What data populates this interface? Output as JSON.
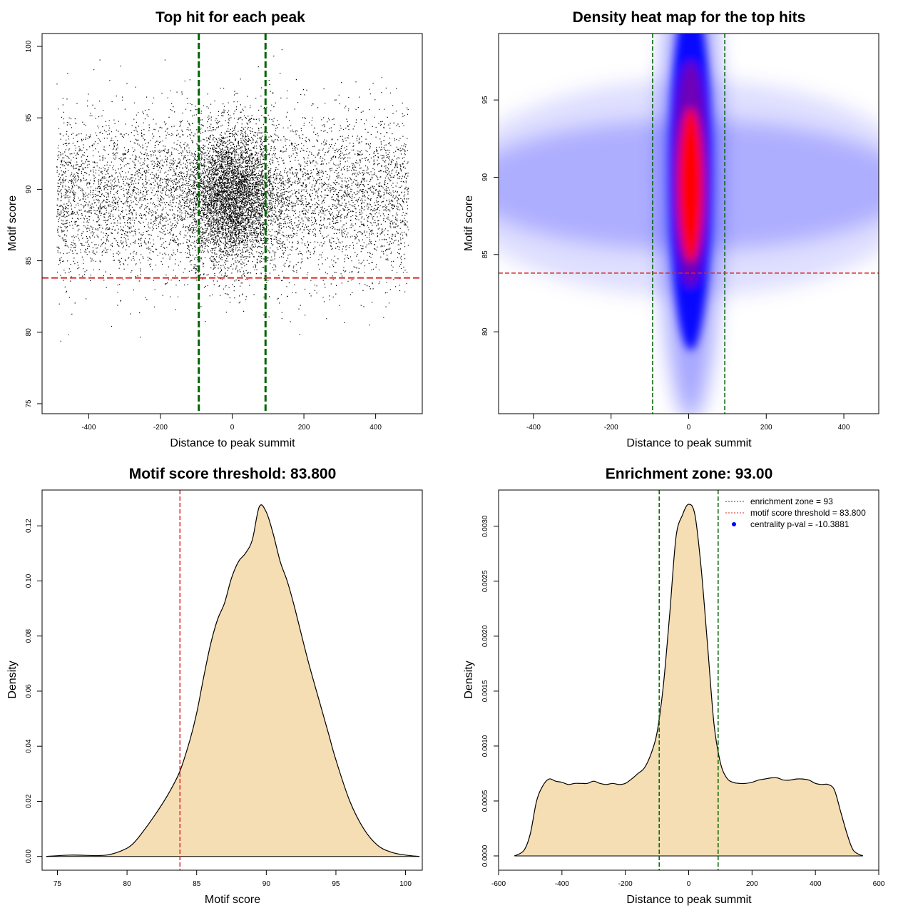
{
  "colors": {
    "threshold_line": "#d62728",
    "zone_line": "#006400",
    "density_fill": "#f5deb3",
    "heat_low": "#ffffff",
    "heat_mid": "#0000ff",
    "heat_high": "#ff0000",
    "points": "#000000",
    "legend_dot": "#0000ff"
  },
  "chart_data": [
    {
      "id": "scatter",
      "type": "scatter",
      "title": "Top hit for each peak",
      "xlabel": "Distance to peak summit",
      "ylabel": "Motif score",
      "xlim": [
        -530,
        530
      ],
      "ylim": [
        74.3,
        100.9
      ],
      "xticks": [
        -400,
        -200,
        0,
        200,
        400
      ],
      "yticks": [
        75,
        80,
        85,
        90,
        95,
        100
      ],
      "x_range": [
        -490,
        490
      ],
      "score_center": 89.5,
      "score_sd_background": 2.9,
      "score_sd_central": 2.3,
      "central_sd_x": 60,
      "threshold": 83.8,
      "zone": [
        -93,
        93
      ]
    },
    {
      "id": "heatmap",
      "type": "heatmap",
      "title": "Density heat map for the top hits",
      "xlabel": "Distance to peak summit",
      "ylabel": "Motif score",
      "xlim": [
        -490,
        490
      ],
      "ylim": [
        74.7,
        99.3
      ],
      "xticks": [
        -400,
        -200,
        0,
        200,
        400
      ],
      "yticks": [
        80,
        85,
        90,
        95
      ],
      "peak": {
        "x": 5,
        "y": 89.5
      },
      "threshold": 83.8,
      "zone": [
        -93,
        93
      ]
    },
    {
      "id": "score-density",
      "type": "area",
      "title": "Motif score threshold: 83.800",
      "xlabel": "Motif score",
      "ylabel": "Density",
      "xlim": [
        73.9,
        101.2
      ],
      "ylim": [
        -0.005,
        0.133
      ],
      "xticks": [
        75,
        80,
        85,
        90,
        95,
        100
      ],
      "yticks": [
        0.0,
        0.02,
        0.04,
        0.06,
        0.08,
        0.1,
        0.12
      ],
      "ytick_labels": [
        "0.00",
        "0.02",
        "0.04",
        "0.06",
        "0.08",
        "0.10",
        "0.12"
      ],
      "x": [
        74.2,
        76,
        78,
        79,
        80,
        80.5,
        81,
        82,
        83,
        83.8,
        84.5,
        85,
        85.5,
        86,
        86.5,
        87,
        87.5,
        88,
        88.5,
        89,
        89.5,
        90,
        90.5,
        91,
        91.5,
        92,
        93,
        94,
        94.5,
        95,
        96,
        97,
        98,
        99,
        100,
        101
      ],
      "y": [
        0.0,
        0.0005,
        0.0003,
        0.001,
        0.003,
        0.005,
        0.008,
        0.015,
        0.023,
        0.031,
        0.042,
        0.052,
        0.065,
        0.077,
        0.086,
        0.092,
        0.101,
        0.107,
        0.11,
        0.115,
        0.127,
        0.125,
        0.117,
        0.107,
        0.1,
        0.091,
        0.071,
        0.053,
        0.044,
        0.035,
        0.02,
        0.01,
        0.004,
        0.0015,
        0.0005,
        0.0
      ],
      "threshold": 83.8
    },
    {
      "id": "distance-density",
      "type": "area",
      "title": "Enrichment zone: 93.00",
      "xlabel": "Distance to peak summit",
      "ylabel": "Density",
      "xlim": [
        -600,
        600
      ],
      "ylim": [
        -0.00013,
        0.00333
      ],
      "xticks": [
        -600,
        -400,
        -200,
        0,
        200,
        400,
        600
      ],
      "yticks": [
        0.0,
        0.0005,
        0.001,
        0.0015,
        0.002,
        0.0025,
        0.003
      ],
      "ytick_labels": [
        "0.0000",
        "0.0005",
        "0.0010",
        "0.0015",
        "0.0020",
        "0.0025",
        "0.0030"
      ],
      "x": [
        -550,
        -520,
        -500,
        -480,
        -460,
        -440,
        -420,
        -400,
        -380,
        -360,
        -340,
        -320,
        -300,
        -280,
        -260,
        -240,
        -220,
        -200,
        -180,
        -160,
        -140,
        -120,
        -100,
        -80,
        -60,
        -40,
        -20,
        0,
        20,
        40,
        60,
        80,
        100,
        120,
        140,
        160,
        180,
        200,
        220,
        240,
        260,
        280,
        300,
        320,
        340,
        360,
        380,
        400,
        420,
        440,
        460,
        480,
        500,
        520,
        550
      ],
      "y": [
        0.0,
        5e-05,
        0.0002,
        0.0005,
        0.00064,
        0.0007,
        0.00068,
        0.00067,
        0.00065,
        0.00066,
        0.00066,
        0.00066,
        0.00068,
        0.00066,
        0.00065,
        0.00066,
        0.00065,
        0.00066,
        0.0007,
        0.00075,
        0.0008,
        0.00092,
        0.00112,
        0.00155,
        0.0022,
        0.0029,
        0.0031,
        0.0032,
        0.0031,
        0.0026,
        0.0019,
        0.0012,
        0.00085,
        0.00071,
        0.00067,
        0.00066,
        0.00066,
        0.00067,
        0.00069,
        0.0007,
        0.00071,
        0.00071,
        0.00069,
        0.00069,
        0.0007,
        0.0007,
        0.00069,
        0.00066,
        0.00065,
        0.00065,
        0.0006,
        0.0004,
        0.0002,
        5e-05,
        0.0
      ],
      "zone": [
        -93,
        93
      ],
      "legend": [
        "enrichment zone = 93",
        "motif score threshold = 83.800",
        "centrality p-val = -10.3881"
      ],
      "legend_position": "top-right"
    }
  ]
}
